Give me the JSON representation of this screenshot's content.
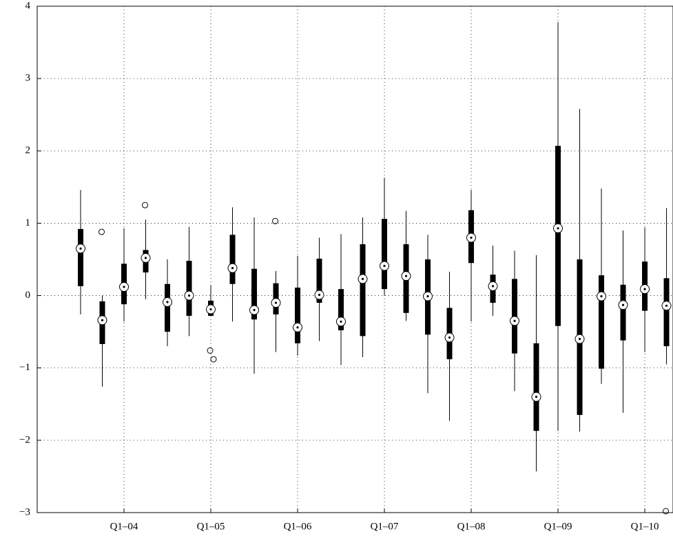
{
  "chart_data": {
    "type": "box",
    "color": "#000000",
    "grid": true,
    "x": [
      1,
      2,
      3,
      4,
      5,
      6,
      7,
      8,
      9,
      10,
      11,
      12,
      13,
      14,
      15,
      16,
      17,
      18,
      19,
      20,
      21,
      22,
      23,
      24,
      25,
      26,
      27,
      28
    ],
    "boxes": [
      {
        "whisker_low": -0.26,
        "q1": 0.13,
        "median": 0.65,
        "q3": 0.92,
        "whisker_high": 1.46
      },
      {
        "whisker_low": -1.26,
        "q1": -0.67,
        "median": -0.34,
        "q3": -0.08,
        "whisker_high": 0.0,
        "outliers": [
          0.88
        ]
      },
      {
        "whisker_low": -0.36,
        "q1": -0.12,
        "median": 0.12,
        "q3": 0.44,
        "whisker_high": 0.93
      },
      {
        "whisker_low": -0.05,
        "q1": 0.32,
        "median": 0.52,
        "q3": 0.63,
        "whisker_high": 1.05,
        "outliers": [
          1.25
        ]
      },
      {
        "whisker_low": -0.7,
        "q1": -0.5,
        "median": -0.09,
        "q3": 0.16,
        "whisker_high": 0.5
      },
      {
        "whisker_low": -0.56,
        "q1": -0.28,
        "median": 0.0,
        "q3": 0.48,
        "whisker_high": 0.95
      },
      {
        "whisker_low": -0.28,
        "q1": -0.28,
        "median": -0.19,
        "q3": -0.07,
        "whisker_high": 0.14,
        "outliers": [
          -0.76,
          -0.88
        ]
      },
      {
        "whisker_low": -0.36,
        "q1": 0.16,
        "median": 0.38,
        "q3": 0.84,
        "whisker_high": 1.22
      },
      {
        "whisker_low": -1.08,
        "q1": -0.33,
        "median": -0.2,
        "q3": 0.37,
        "whisker_high": 1.08
      },
      {
        "whisker_low": -0.78,
        "q1": -0.26,
        "median": -0.1,
        "q3": 0.17,
        "whisker_high": 0.34,
        "outliers": [
          1.03
        ]
      },
      {
        "whisker_low": -0.83,
        "q1": -0.66,
        "median": -0.44,
        "q3": 0.11,
        "whisker_high": 0.55
      },
      {
        "whisker_low": -0.63,
        "q1": -0.1,
        "median": 0.01,
        "q3": 0.51,
        "whisker_high": 0.8
      },
      {
        "whisker_low": -0.96,
        "q1": -0.48,
        "median": -0.36,
        "q3": 0.09,
        "whisker_high": 0.85
      },
      {
        "whisker_low": -0.85,
        "q1": -0.56,
        "median": 0.23,
        "q3": 0.71,
        "whisker_high": 1.08
      },
      {
        "whisker_low": 0.0,
        "q1": 0.09,
        "median": 0.41,
        "q3": 1.06,
        "whisker_high": 1.63
      },
      {
        "whisker_low": -0.35,
        "q1": -0.24,
        "median": 0.27,
        "q3": 0.71,
        "whisker_high": 1.17
      },
      {
        "whisker_low": -1.35,
        "q1": -0.54,
        "median": -0.01,
        "q3": 0.5,
        "whisker_high": 0.84
      },
      {
        "whisker_low": -1.73,
        "q1": -0.88,
        "median": -0.58,
        "q3": -0.17,
        "whisker_high": 0.33
      },
      {
        "whisker_low": -0.36,
        "q1": 0.45,
        "median": 0.8,
        "q3": 1.18,
        "whisker_high": 1.46
      },
      {
        "whisker_low": -0.28,
        "q1": -0.1,
        "median": 0.13,
        "q3": 0.29,
        "whisker_high": 0.69
      },
      {
        "whisker_low": -1.32,
        "q1": -0.8,
        "median": -0.35,
        "q3": 0.23,
        "whisker_high": 0.62
      },
      {
        "whisker_low": -2.43,
        "q1": -1.87,
        "median": -1.4,
        "q3": -0.66,
        "whisker_high": 0.56
      },
      {
        "whisker_low": -1.87,
        "q1": -0.42,
        "median": 0.93,
        "q3": 2.07,
        "whisker_high": 3.78
      },
      {
        "whisker_low": -1.88,
        "q1": -1.65,
        "median": -0.6,
        "q3": 0.5,
        "whisker_high": 2.58
      },
      {
        "whisker_low": -1.22,
        "q1": -1.01,
        "median": -0.01,
        "q3": 0.28,
        "whisker_high": 1.48
      },
      {
        "whisker_low": -1.62,
        "q1": -0.62,
        "median": -0.13,
        "q3": 0.15,
        "whisker_high": 0.9
      },
      {
        "whisker_low": -0.78,
        "q1": -0.21,
        "median": 0.09,
        "q3": 0.47,
        "whisker_high": 0.94
      },
      {
        "whisker_low": -0.95,
        "q1": -0.7,
        "median": -0.14,
        "q3": 0.24,
        "whisker_high": 1.21,
        "outliers": [
          -2.98
        ]
      }
    ],
    "xlim": [
      -1,
      28.3
    ],
    "ylim": [
      -3,
      4
    ],
    "xticks": [
      {
        "value": 3,
        "label": "Q1–04"
      },
      {
        "value": 7,
        "label": "Q1–05"
      },
      {
        "value": 11,
        "label": "Q1–06"
      },
      {
        "value": 15,
        "label": "Q1–07"
      },
      {
        "value": 19,
        "label": "Q1–08"
      },
      {
        "value": 23,
        "label": "Q1–09"
      },
      {
        "value": 27,
        "label": "Q1–10"
      }
    ],
    "yticks": [
      {
        "value": -3,
        "label": "−3"
      },
      {
        "value": -2,
        "label": "−2"
      },
      {
        "value": -1,
        "label": "−1"
      },
      0,
      1,
      2,
      3,
      4
    ]
  }
}
